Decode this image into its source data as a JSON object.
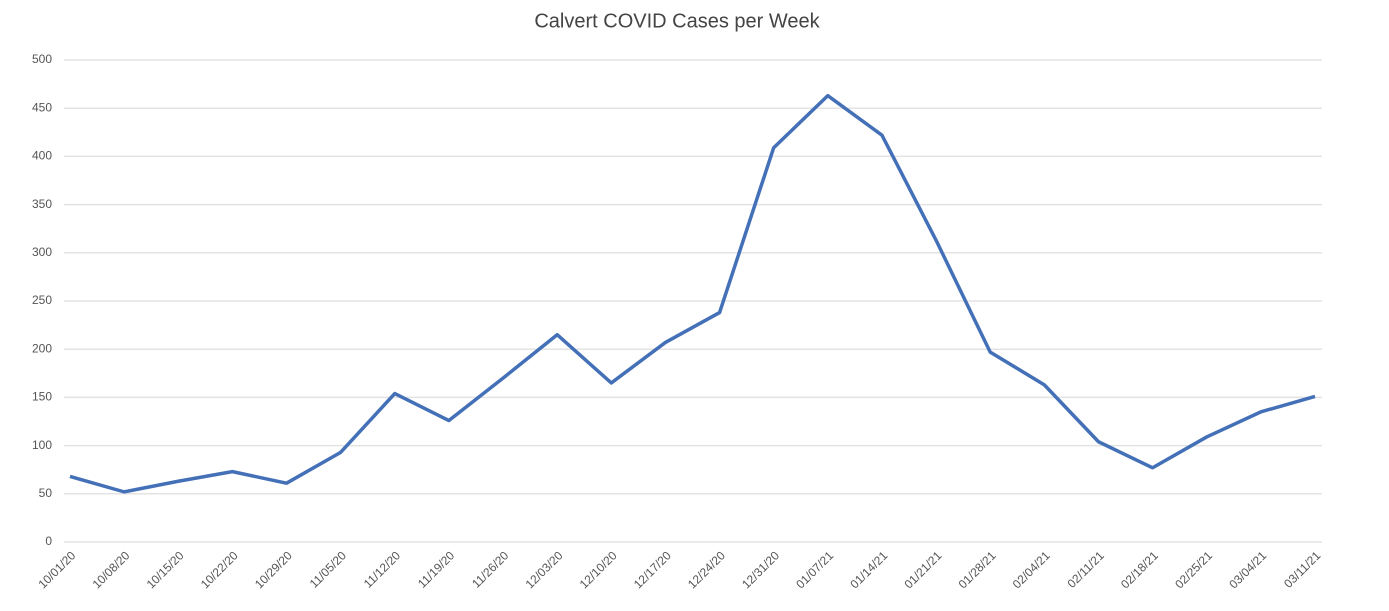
{
  "chart_data": {
    "type": "line",
    "title": "Calvert COVID Cases per Week",
    "categories": [
      "10/01/20",
      "10/08/20",
      "10/15/20",
      "10/22/20",
      "10/29/20",
      "11/05/20",
      "11/12/20",
      "11/19/20",
      "11/26/20",
      "12/03/20",
      "12/10/20",
      "12/17/20",
      "12/24/20",
      "12/31/20",
      "01/07/21",
      "01/14/21",
      "01/21/21",
      "01/28/21",
      "02/04/21",
      "02/11/21",
      "02/18/21",
      "02/25/21",
      "03/04/21",
      "03/11/21"
    ],
    "series": [
      {
        "name": "Cases",
        "color": "#4470b8",
        "values": [
          68,
          52,
          63,
          73,
          61,
          93,
          154,
          126,
          170,
          215,
          165,
          207,
          238,
          409,
          463,
          422,
          313,
          197,
          163,
          104,
          77,
          109,
          135,
          151
        ]
      }
    ],
    "ylim": [
      0,
      500
    ],
    "yticks": [
      0,
      50,
      100,
      150,
      200,
      250,
      300,
      350,
      400,
      450,
      500
    ],
    "grid": true
  }
}
